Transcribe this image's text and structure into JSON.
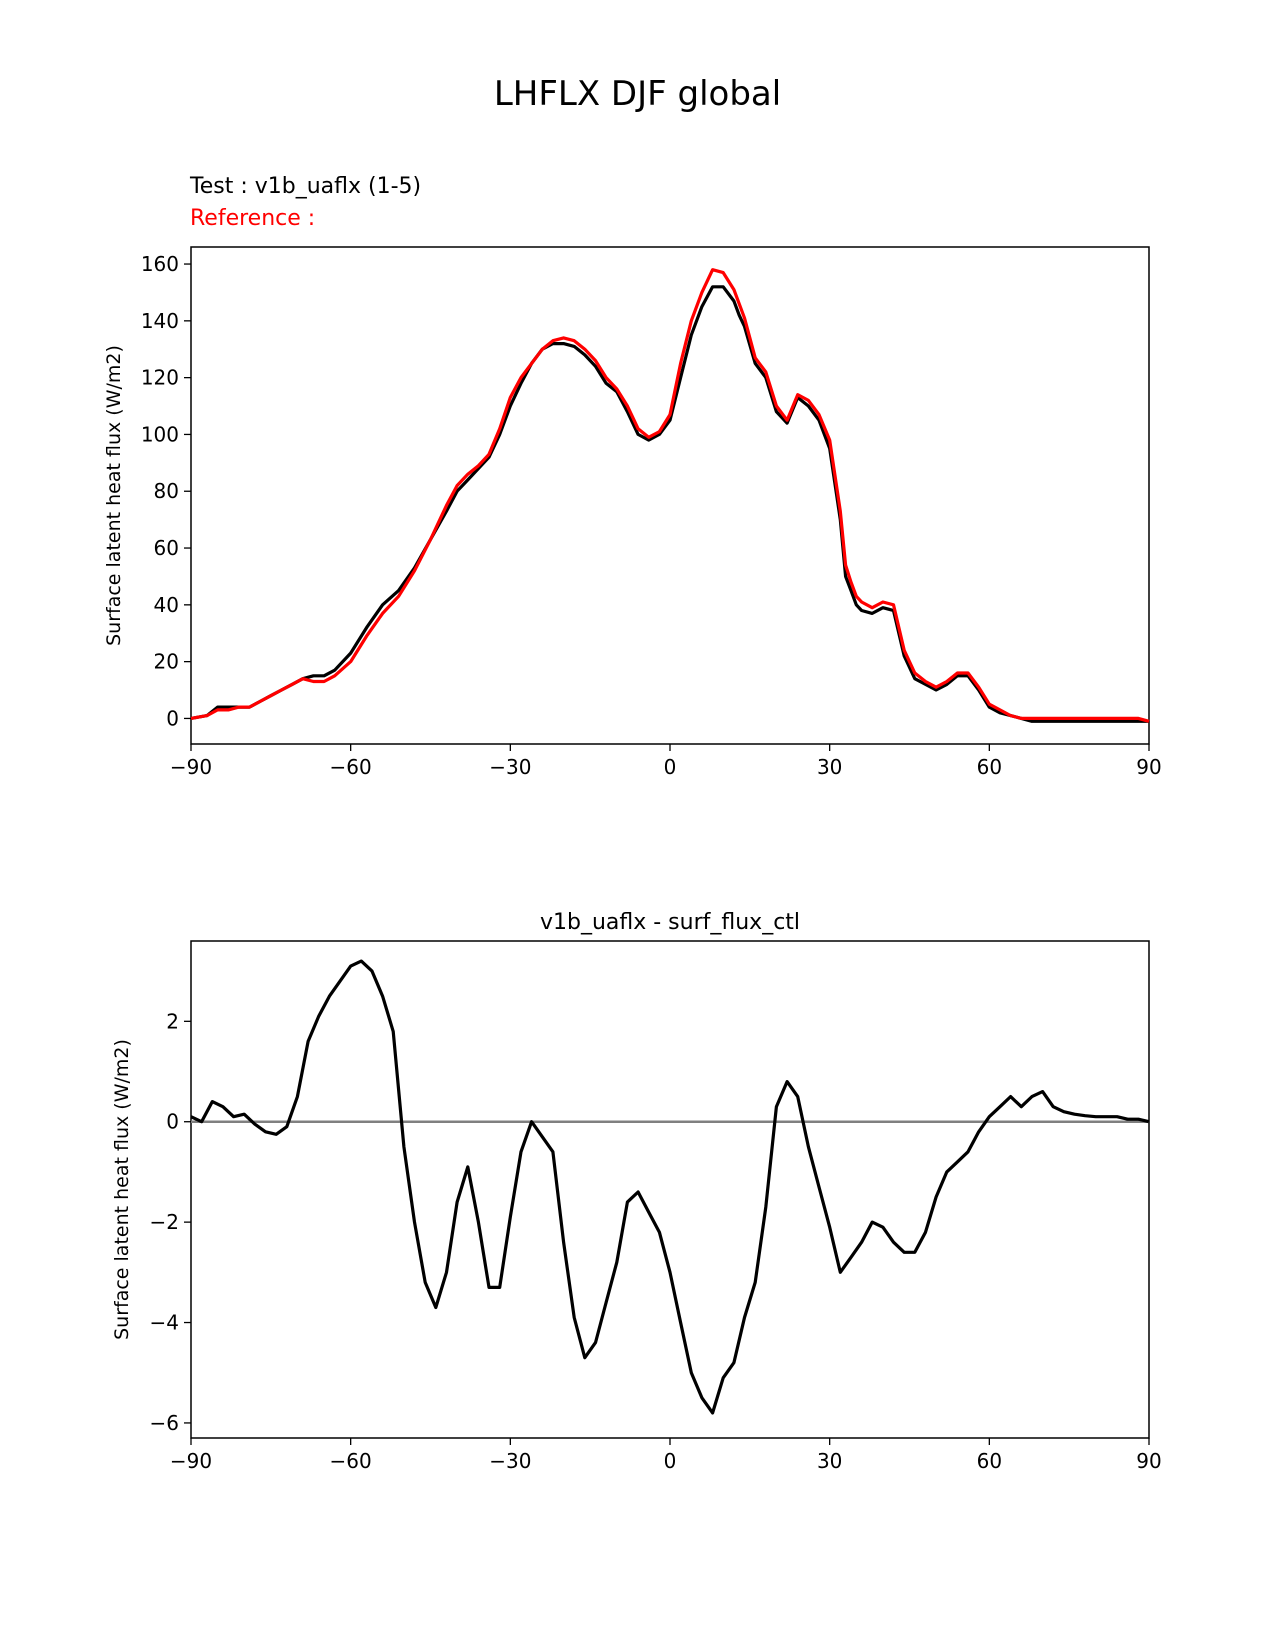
{
  "figure": {
    "title": "LHFLX DJF global",
    "test_label": "Test : v1b_uaflx (1-5)",
    "reference_label": "Reference :"
  },
  "chart_data": [
    {
      "type": "line",
      "title": "",
      "xlabel": "",
      "ylabel": "Surface latent heat flux (W/m2)",
      "xlim": [
        -90,
        90
      ],
      "ylim": [
        -9,
        166
      ],
      "xticks": [
        -90,
        -60,
        -30,
        0,
        30,
        60,
        90
      ],
      "xtick_labels": [
        "−90",
        "−60",
        "−30",
        "0",
        "30",
        "60",
        "90"
      ],
      "yticks": [
        0,
        20,
        40,
        60,
        80,
        100,
        120,
        140,
        160
      ],
      "ytick_labels": [
        "0",
        "20",
        "40",
        "60",
        "80",
        "100",
        "120",
        "140",
        "160"
      ],
      "grid": false,
      "series": [
        {
          "name": "Test : v1b_uaflx (1-5)",
          "color": "#000000",
          "x": [
            -90,
            -87,
            -85,
            -83,
            -81,
            -79,
            -77,
            -75,
            -73,
            -71,
            -69,
            -67,
            -65,
            -63,
            -60,
            -57,
            -54,
            -51,
            -48,
            -45,
            -42,
            -40,
            -38,
            -36,
            -34,
            -32,
            -30,
            -28,
            -26,
            -24,
            -22,
            -20,
            -18,
            -16,
            -14,
            -12,
            -10,
            -8,
            -6,
            -4,
            -2,
            0,
            2,
            4,
            6,
            8,
            10,
            12,
            13,
            14,
            16,
            18,
            20,
            22,
            24,
            26,
            28,
            30,
            32,
            33,
            34,
            35,
            36,
            38,
            40,
            42,
            44,
            46,
            48,
            50,
            52,
            54,
            56,
            58,
            60,
            62,
            64,
            66,
            68,
            70,
            72,
            74,
            76,
            78,
            80,
            82,
            85,
            88,
            90
          ],
          "y": [
            0,
            1,
            4,
            4,
            4,
            4,
            6,
            8,
            10,
            12,
            14,
            15,
            15,
            17,
            23,
            32,
            40,
            45,
            53,
            63,
            73,
            80,
            84,
            88,
            92,
            100,
            110,
            118,
            125,
            130,
            132,
            132,
            131,
            128,
            124,
            118,
            115,
            108,
            100,
            98,
            100,
            105,
            120,
            135,
            145,
            152,
            152,
            147,
            142,
            138,
            125,
            120,
            108,
            104,
            113,
            110,
            105,
            95,
            70,
            50,
            45,
            40,
            38,
            37,
            39,
            38,
            22,
            14,
            12,
            10,
            12,
            15,
            15,
            10,
            4,
            2,
            1,
            0,
            -1,
            -1,
            -1,
            -1,
            -1,
            -1,
            -1,
            -1,
            -1,
            -1,
            -1
          ]
        },
        {
          "name": "Reference :",
          "color": "#ff0000",
          "x": [
            -90,
            -87,
            -85,
            -83,
            -81,
            -79,
            -77,
            -75,
            -73,
            -71,
            -69,
            -67,
            -65,
            -63,
            -60,
            -57,
            -54,
            -51,
            -48,
            -45,
            -42,
            -40,
            -38,
            -36,
            -34,
            -32,
            -30,
            -28,
            -26,
            -24,
            -22,
            -20,
            -18,
            -16,
            -14,
            -12,
            -10,
            -8,
            -6,
            -4,
            -2,
            0,
            2,
            4,
            6,
            8,
            10,
            12,
            13,
            14,
            16,
            18,
            20,
            22,
            24,
            26,
            28,
            30,
            32,
            33,
            34,
            35,
            36,
            38,
            40,
            42,
            44,
            46,
            48,
            50,
            52,
            54,
            56,
            58,
            60,
            62,
            64,
            66,
            68,
            70,
            72,
            74,
            76,
            78,
            80,
            82,
            85,
            88,
            90
          ],
          "y": [
            0,
            1,
            3,
            3,
            4,
            4,
            6,
            8,
            10,
            12,
            14,
            13,
            13,
            15,
            20,
            29,
            37,
            43,
            52,
            63,
            75,
            82,
            86,
            89,
            93,
            102,
            113,
            120,
            125,
            130,
            133,
            134,
            133,
            130,
            126,
            120,
            116,
            110,
            102,
            99,
            101,
            107,
            125,
            140,
            150,
            158,
            157,
            151,
            146,
            141,
            127,
            122,
            110,
            105,
            114,
            112,
            107,
            98,
            73,
            54,
            48,
            43,
            41,
            39,
            41,
            40,
            24,
            16,
            13,
            11,
            13,
            16,
            16,
            11,
            5,
            3,
            1,
            0,
            0,
            0,
            0,
            0,
            0,
            0,
            0,
            0,
            0,
            0,
            -1
          ]
        }
      ]
    },
    {
      "type": "line",
      "title": "v1b_uaflx - surf_flux_ctl",
      "xlabel": "",
      "ylabel": "Surface latent heat flux (W/m2)",
      "xlim": [
        -90,
        90
      ],
      "ylim": [
        -6.3,
        3.6
      ],
      "xticks": [
        -90,
        -60,
        -30,
        0,
        30,
        60,
        90
      ],
      "xtick_labels": [
        "−90",
        "−60",
        "−30",
        "0",
        "30",
        "60",
        "90"
      ],
      "yticks": [
        -6,
        -4,
        -2,
        0,
        2
      ],
      "ytick_labels": [
        "−6",
        "−4",
        "−2",
        "0",
        "2"
      ],
      "grid": false,
      "zero_line_color": "#808080",
      "series": [
        {
          "name": "v1b_uaflx - surf_flux_ctl",
          "color": "#000000",
          "x": [
            -90,
            -88,
            -86,
            -84,
            -82,
            -80,
            -78,
            -76,
            -74,
            -72,
            -70,
            -68,
            -66,
            -64,
            -62,
            -60,
            -58,
            -56,
            -54,
            -52,
            -50,
            -48,
            -46,
            -44,
            -42,
            -40,
            -38,
            -36,
            -34,
            -32,
            -30,
            -28,
            -26,
            -24,
            -22,
            -20,
            -18,
            -16,
            -14,
            -12,
            -10,
            -8,
            -6,
            -4,
            -2,
            0,
            2,
            4,
            6,
            8,
            10,
            12,
            14,
            16,
            18,
            20,
            22,
            24,
            26,
            28,
            30,
            32,
            34,
            36,
            38,
            40,
            42,
            44,
            46,
            48,
            50,
            52,
            54,
            56,
            58,
            60,
            62,
            64,
            66,
            68,
            70,
            72,
            74,
            76,
            78,
            80,
            82,
            84,
            86,
            88,
            90
          ],
          "y": [
            0.1,
            0.0,
            0.4,
            0.3,
            0.1,
            0.15,
            -0.05,
            -0.2,
            -0.25,
            -0.1,
            0.5,
            1.6,
            2.1,
            2.5,
            2.8,
            3.1,
            3.2,
            3.0,
            2.5,
            1.8,
            -0.5,
            -2.0,
            -3.2,
            -3.7,
            -3.0,
            -1.6,
            -0.9,
            -2.0,
            -3.3,
            -3.3,
            -1.9,
            -0.6,
            0.0,
            -0.3,
            -0.6,
            -2.4,
            -3.9,
            -4.7,
            -4.4,
            -3.6,
            -2.8,
            -1.6,
            -1.4,
            -1.8,
            -2.2,
            -3.0,
            -4.0,
            -5.0,
            -5.5,
            -5.8,
            -5.1,
            -4.8,
            -3.9,
            -3.2,
            -1.7,
            0.3,
            0.8,
            0.5,
            -0.5,
            -1.3,
            -2.1,
            -3.0,
            -2.7,
            -2.4,
            -2.0,
            -2.1,
            -2.4,
            -2.6,
            -2.6,
            -2.2,
            -1.5,
            -1.0,
            -0.8,
            -0.6,
            -0.2,
            0.1,
            0.3,
            0.5,
            0.3,
            0.5,
            0.6,
            0.3,
            0.2,
            0.15,
            0.12,
            0.1,
            0.1,
            0.1,
            0.05,
            0.05,
            0.0
          ]
        }
      ]
    }
  ]
}
